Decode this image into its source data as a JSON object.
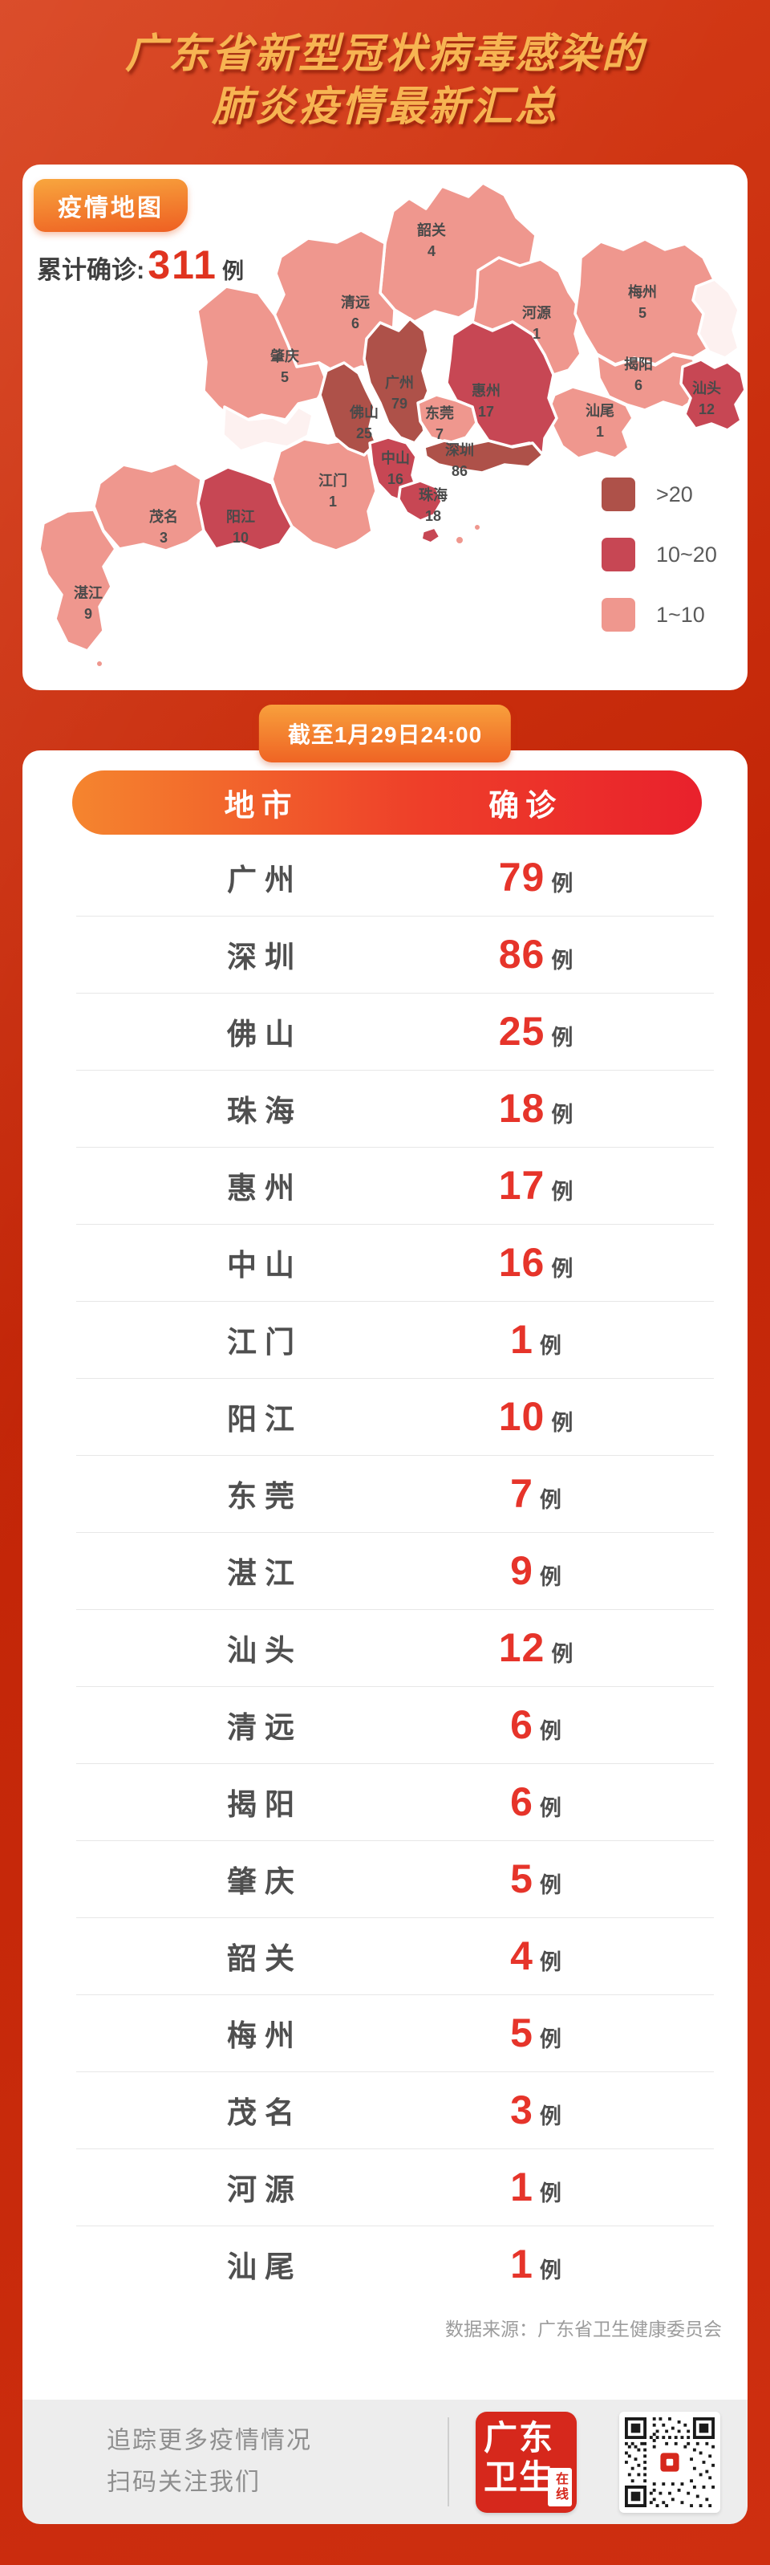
{
  "header": {
    "title_line1": "广东省新型冠状病毒感染的",
    "title_line2": "肺炎疫情最新汇总"
  },
  "map_card": {
    "badge": "疫情地图",
    "total_label": "累计确诊:",
    "total_value": "311",
    "total_unit": "例",
    "legend": [
      {
        "label": ">20",
        "color": "#ae5149"
      },
      {
        "label": "10~20",
        "color": "#c74754"
      },
      {
        "label": "1~10",
        "color": "#ef978e"
      }
    ],
    "regions": [
      {
        "name": "韶关",
        "value": "4",
        "category": 2
      },
      {
        "name": "清远",
        "value": "6",
        "category": 2
      },
      {
        "name": "肇庆",
        "value": "5",
        "category": 2
      },
      {
        "name": "河源",
        "value": "1",
        "category": 2
      },
      {
        "name": "梅州",
        "value": "5",
        "category": 2
      },
      {
        "name": "揭阳",
        "value": "6",
        "category": 2
      },
      {
        "name": "汕头",
        "value": "12",
        "category": 1
      },
      {
        "name": "汕尾",
        "value": "1",
        "category": 2
      },
      {
        "name": "惠州",
        "value": "17",
        "category": 1
      },
      {
        "name": "茂名",
        "value": "3",
        "category": 2
      },
      {
        "name": "湛江",
        "value": "9",
        "category": 2
      },
      {
        "name": "阳江",
        "value": "10",
        "category": 1
      },
      {
        "name": "江门",
        "value": "1",
        "category": 2
      },
      {
        "name": "佛山",
        "value": "25",
        "category": 0
      },
      {
        "name": "广州",
        "value": "79",
        "category": 0
      },
      {
        "name": "东莞",
        "value": "7",
        "category": 2
      },
      {
        "name": "深圳",
        "value": "86",
        "category": 0
      },
      {
        "name": "中山",
        "value": "16",
        "category": 1
      },
      {
        "name": "珠海",
        "value": "18",
        "category": 1
      }
    ]
  },
  "table_card": {
    "badge": "截至1月29日24:00",
    "columns": [
      "地市",
      "确诊"
    ],
    "unit": "例",
    "rows": [
      {
        "city": "广州",
        "value": "79"
      },
      {
        "city": "深圳",
        "value": "86"
      },
      {
        "city": "佛山",
        "value": "25"
      },
      {
        "city": "珠海",
        "value": "18"
      },
      {
        "city": "惠州",
        "value": "17"
      },
      {
        "city": "中山",
        "value": "16"
      },
      {
        "city": "江门",
        "value": "1"
      },
      {
        "city": "阳江",
        "value": "10"
      },
      {
        "city": "东莞",
        "value": "7"
      },
      {
        "city": "湛江",
        "value": "9"
      },
      {
        "city": "汕头",
        "value": "12"
      },
      {
        "city": "清远",
        "value": "6"
      },
      {
        "city": "揭阳",
        "value": "6"
      },
      {
        "city": "肇庆",
        "value": "5"
      },
      {
        "city": "韶关",
        "value": "4"
      },
      {
        "city": "梅州",
        "value": "5"
      },
      {
        "city": "茂名",
        "value": "3"
      },
      {
        "city": "河源",
        "value": "1"
      },
      {
        "city": "汕尾",
        "value": "1"
      }
    ],
    "source": "数据来源：广东省卫生健康委员会"
  },
  "footer": {
    "line1": "追踪更多疫情情况",
    "line2": "扫码关注我们",
    "logo_line1": "广东",
    "logo_line2": "卫生",
    "logo_side": "在线"
  },
  "chart_data": [
    {
      "type": "heatmap",
      "title": "疫情地图",
      "subtitle": "累计确诊：311例",
      "legend_bins": [
        ">20",
        "10~20",
        "1~10"
      ],
      "regions": {
        "广州": 79,
        "深圳": 86,
        "佛山": 25,
        "珠海": 18,
        "惠州": 17,
        "中山": 16,
        "江门": 1,
        "阳江": 10,
        "东莞": 7,
        "湛江": 9,
        "汕头": 12,
        "清远": 6,
        "揭阳": 6,
        "肇庆": 5,
        "韶关": 4,
        "梅州": 5,
        "茂名": 3,
        "河源": 1,
        "汕尾": 1
      }
    },
    {
      "type": "table",
      "title": "截至1月29日24:00",
      "columns": [
        "地市",
        "确诊"
      ],
      "rows": [
        [
          "广州",
          79
        ],
        [
          "深圳",
          86
        ],
        [
          "佛山",
          25
        ],
        [
          "珠海",
          18
        ],
        [
          "惠州",
          17
        ],
        [
          "中山",
          16
        ],
        [
          "江门",
          1
        ],
        [
          "阳江",
          10
        ],
        [
          "东莞",
          7
        ],
        [
          "湛江",
          9
        ],
        [
          "汕头",
          12
        ],
        [
          "清远",
          6
        ],
        [
          "揭阳",
          6
        ],
        [
          "肇庆",
          5
        ],
        [
          "韶关",
          4
        ],
        [
          "梅州",
          5
        ],
        [
          "茂名",
          3
        ],
        [
          "河源",
          1
        ],
        [
          "汕尾",
          1
        ]
      ]
    }
  ]
}
